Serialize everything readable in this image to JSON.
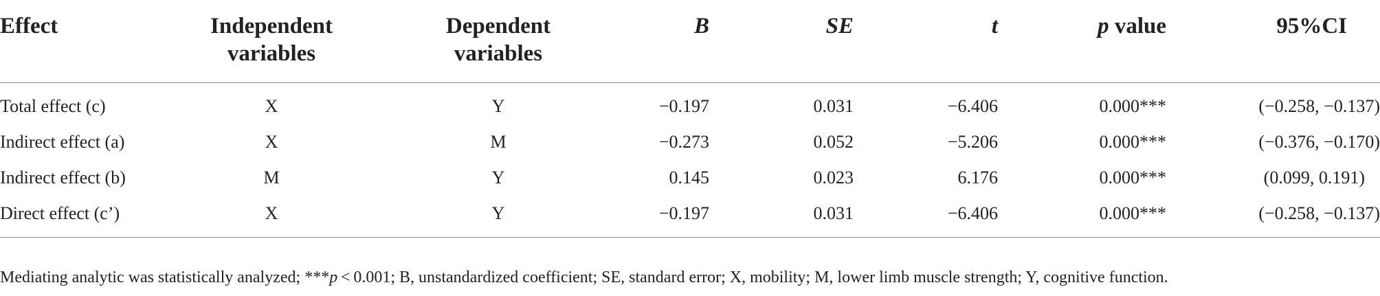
{
  "table": {
    "headers": {
      "effect": "Effect",
      "independent": [
        "Independent",
        "variables"
      ],
      "dependent": [
        "Dependent",
        "variables"
      ],
      "b": "B",
      "se": "SE",
      "t": "t",
      "p_italic": "p",
      "p_rest": " value",
      "ci": "95%CI"
    },
    "rows": [
      {
        "effect": "Total effect (c)",
        "independent": "X",
        "dependent": "Y",
        "b": "−0.197",
        "se": "0.031",
        "t": "−6.406",
        "p": "0.000***",
        "ci": "(−0.258, −0.137)"
      },
      {
        "effect": "Indirect effect (a)",
        "independent": "X",
        "dependent": "M",
        "b": "−0.273",
        "se": "0.052",
        "t": "−5.206",
        "p": "0.000***",
        "ci": "(−0.376, −0.170)"
      },
      {
        "effect": "Indirect effect (b)",
        "independent": "M",
        "dependent": "Y",
        "b": "0.145",
        "se": "0.023",
        "t": "6.176",
        "p": "0.000***",
        "ci": "(0.099, 0.191)"
      },
      {
        "effect": "Direct effect (c’)",
        "independent": "X",
        "dependent": "Y",
        "b": "−0.197",
        "se": "0.031",
        "t": "−6.406",
        "p": "0.000***",
        "ci": "(−0.258, −0.137)"
      }
    ]
  },
  "footnote": {
    "before": "Mediating analytic was statistically analyzed; ***",
    "p_italic": "p",
    "after": " < 0.001; B, unstandardized coefficient; SE, standard error; X, mobility; M, lower limb muscle strength; Y, cognitive function."
  }
}
